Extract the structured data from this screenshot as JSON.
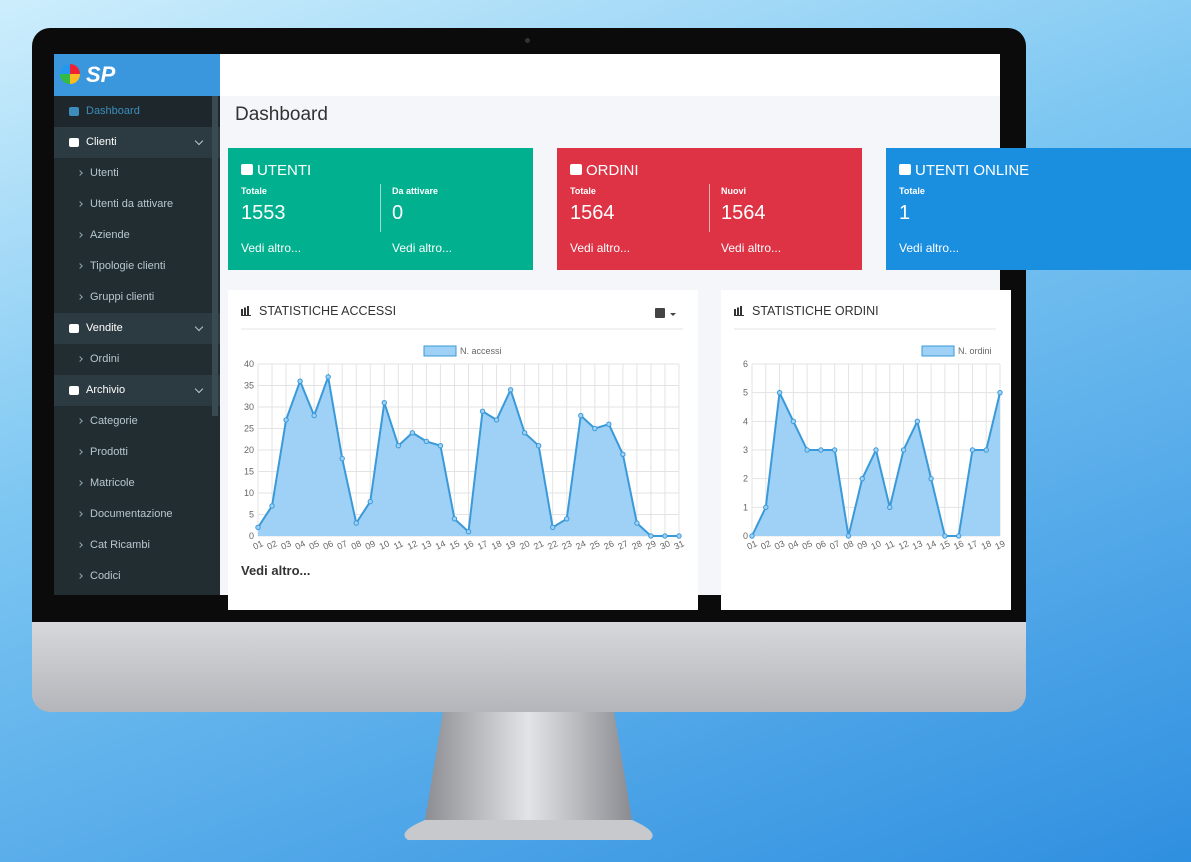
{
  "logo": "SP",
  "page_title": "Dashboard",
  "sidebar": [
    {
      "label": "Dashboard",
      "items": []
    },
    {
      "label": "Clienti",
      "items": [
        "Utenti",
        "Utenti da attivare",
        "Aziende",
        "Tipologie clienti",
        "Gruppi clienti"
      ]
    },
    {
      "label": "Vendite",
      "items": [
        "Ordini"
      ]
    },
    {
      "label": "Archivio",
      "items": [
        "Categorie",
        "Prodotti",
        "Matricole",
        "Documentazione",
        "Cat Ricambi",
        "Codici"
      ]
    }
  ],
  "cards": [
    {
      "title": "UTENTI",
      "color": "#00b08e",
      "stats": [
        {
          "label": "Totale",
          "value": 1553,
          "link": "Vedi altro..."
        },
        {
          "label": "Da attivare",
          "value": 0,
          "link": "Vedi altro..."
        }
      ]
    },
    {
      "title": "ORDINI",
      "color": "#dd3344",
      "stats": [
        {
          "label": "Totale",
          "value": 1564,
          "link": "Vedi altro..."
        },
        {
          "label": "Nuovi",
          "value": 1564,
          "link": "Vedi altro..."
        }
      ]
    },
    {
      "title": "UTENTI ONLINE",
      "color": "#1a8fe0",
      "stats": [
        {
          "label": "Totale",
          "value": 1,
          "link": "Vedi altro..."
        }
      ]
    }
  ],
  "chart_data": [
    {
      "type": "line",
      "title": "STATISTICHE ACCESSI",
      "link": "Vedi altro...",
      "categories": [
        "01",
        "02",
        "03",
        "04",
        "05",
        "06",
        "07",
        "08",
        "09",
        "10",
        "11",
        "12",
        "13",
        "14",
        "15",
        "16",
        "17",
        "18",
        "19",
        "20",
        "21",
        "22",
        "23",
        "24",
        "25",
        "26",
        "27",
        "28",
        "29",
        "30",
        "31"
      ],
      "series": [
        {
          "name": "N. accessi",
          "color": "#3a9ad9",
          "values": [
            2,
            7,
            27,
            36,
            28,
            37,
            18,
            3,
            8,
            31,
            21,
            24,
            22,
            21,
            4,
            1,
            29,
            27,
            34,
            24,
            21,
            2,
            4,
            28,
            25,
            26,
            19,
            3,
            0,
            0,
            0
          ]
        }
      ],
      "ylim": [
        0,
        40
      ],
      "yticks": [
        0,
        5,
        10,
        15,
        20,
        25,
        30,
        35,
        40
      ],
      "grid": true
    },
    {
      "type": "line",
      "title": "STATISTICHE ORDINI",
      "categories": [
        "01",
        "02",
        "03",
        "04",
        "05",
        "06",
        "07",
        "08",
        "09",
        "10",
        "11",
        "12",
        "13",
        "14",
        "15",
        "16",
        "17",
        "18",
        "19"
      ],
      "series": [
        {
          "name": "N. ordini",
          "color": "#3a9ad9",
          "values": [
            0,
            1,
            5,
            4,
            3,
            3,
            3,
            0,
            2,
            3,
            1,
            3,
            4,
            2,
            0,
            0,
            3,
            3,
            5
          ]
        }
      ],
      "ylim": [
        0,
        6
      ],
      "yticks": [
        0,
        1,
        2,
        3,
        4,
        5,
        6
      ],
      "grid": true
    }
  ]
}
